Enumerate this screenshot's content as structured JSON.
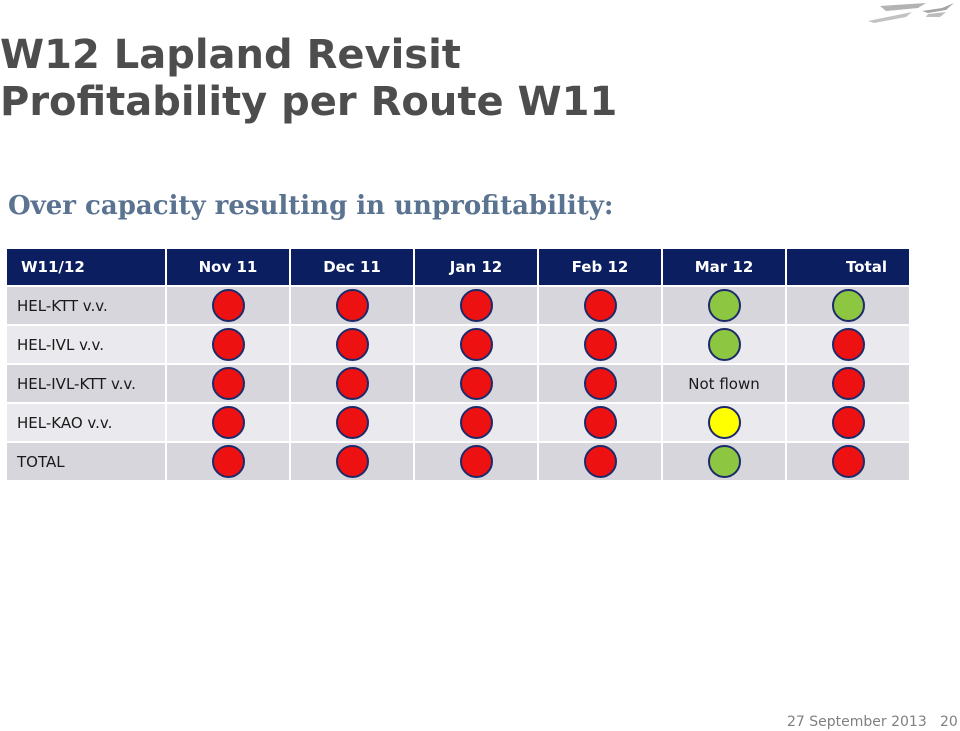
{
  "title_line1": "W12 Lapland Revisit",
  "title_line2": "Profitability per Route W11",
  "subtitle": "Over capacity resulting in unprofitability:",
  "colors": {
    "red": "#ee1111",
    "green": "#8dc641",
    "yellow": "#ffff00",
    "header_bg": "#0b1e5f",
    "title": "#4d4d4d",
    "subtitle": "#5a7391"
  },
  "table": {
    "headers": [
      "W11/12",
      "Nov 11",
      "Dec 11",
      "Jan 12",
      "Feb 12",
      "Mar 12",
      "Total"
    ],
    "rows": [
      {
        "label": "HEL-KTT v.v.",
        "cells": [
          {
            "status": "red"
          },
          {
            "status": "red"
          },
          {
            "status": "red"
          },
          {
            "status": "red"
          },
          {
            "status": "green"
          },
          {
            "status": "green"
          }
        ]
      },
      {
        "label": "HEL-IVL v.v.",
        "cells": [
          {
            "status": "red"
          },
          {
            "status": "red"
          },
          {
            "status": "red"
          },
          {
            "status": "red"
          },
          {
            "status": "green"
          },
          {
            "status": "red"
          }
        ]
      },
      {
        "label": "HEL-IVL-KTT v.v.",
        "cells": [
          {
            "status": "red"
          },
          {
            "status": "red"
          },
          {
            "status": "red"
          },
          {
            "status": "red"
          },
          {
            "text": "Not flown"
          },
          {
            "status": "red"
          }
        ]
      },
      {
        "label": "HEL-KAO v.v.",
        "cells": [
          {
            "status": "red"
          },
          {
            "status": "red"
          },
          {
            "status": "red"
          },
          {
            "status": "red"
          },
          {
            "status": "yellow"
          },
          {
            "status": "red"
          }
        ]
      },
      {
        "label": "TOTAL",
        "cells": [
          {
            "status": "red"
          },
          {
            "status": "red"
          },
          {
            "status": "red"
          },
          {
            "status": "red"
          },
          {
            "status": "green"
          },
          {
            "status": "red"
          }
        ]
      }
    ]
  },
  "footer": {
    "date": "27 September 2013",
    "page": "20"
  },
  "logo_icon": "finnair-logo-icon"
}
